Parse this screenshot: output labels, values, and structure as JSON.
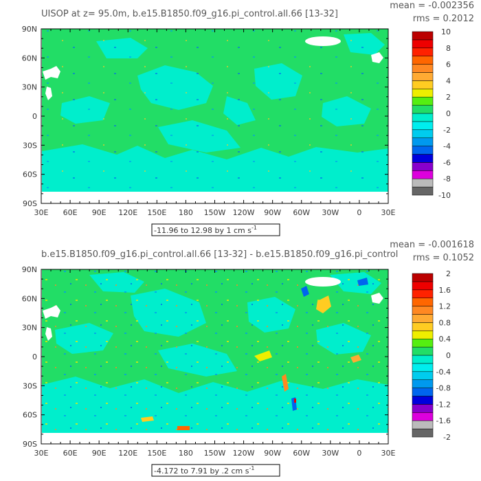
{
  "colorbar_colors": [
    "#666666",
    "#bbbbbb",
    "#dd00dd",
    "#8800cc",
    "#0000dd",
    "#0066ee",
    "#0099ee",
    "#00ccee",
    "#00eeee",
    "#00eecc",
    "#22dd66",
    "#55ee11",
    "#eeee00",
    "#ffcc22",
    "#ffaa33",
    "#ff8822",
    "#ff6600",
    "#ff2200",
    "#ee0000",
    "#bb0000"
  ],
  "chart_data": [
    {
      "type": "heatmap",
      "title": "UISOP at z=  95.0m, b.e15.B1850.f09_g16.pi_control.all.66 [13-32]",
      "stats_mean": "mean = -0.002356",
      "stats_rms": "rms = 0.2012",
      "range_label": "-11.96 to 12.98 by 1 cm s",
      "range_unit_sup": "-1",
      "x_ticks": [
        "30E",
        "60E",
        "90E",
        "120E",
        "150E",
        "180",
        "150W",
        "120W",
        "90W",
        "60W",
        "30W",
        "0",
        "30E"
      ],
      "y_ticks": [
        "90N",
        "60N",
        "30N",
        "0",
        "30S",
        "60S",
        "90S"
      ],
      "colorbar_labels": [
        "10",
        "8",
        "6",
        "4",
        "2",
        "0",
        "-2",
        "-4",
        "-6",
        "-8",
        "-10"
      ],
      "colorbar_range": [
        -10,
        10
      ],
      "field_summary": {
        "min": -11.96,
        "max": 12.98,
        "mean": -0.002356,
        "rms": 0.2012
      }
    },
    {
      "type": "heatmap",
      "title": "b.e15.B1850.f09_g16.pi_control.all.66 [13-32] - b.e15.B1850.f09_g16.pi_control",
      "stats_mean": "mean = -0.001618",
      "stats_rms": "rms = 0.1052",
      "range_label": "-4.172 to 7.91 by .2 cm s",
      "range_unit_sup": "-1",
      "x_ticks": [
        "30E",
        "60E",
        "90E",
        "120E",
        "150E",
        "180",
        "150W",
        "120W",
        "90W",
        "60W",
        "30W",
        "0",
        "30E"
      ],
      "y_ticks": [
        "90N",
        "60N",
        "30N",
        "0",
        "30S",
        "60S",
        "90S"
      ],
      "colorbar_labels": [
        "2",
        "1.6",
        "1.2",
        "0.8",
        "0.4",
        "0",
        "-0.4",
        "-0.8",
        "-1.2",
        "-1.6",
        "-2"
      ],
      "colorbar_range": [
        -2,
        2
      ],
      "field_summary": {
        "min": -4.172,
        "max": 7.91,
        "mean": -0.001618,
        "rms": 0.1052
      }
    }
  ]
}
